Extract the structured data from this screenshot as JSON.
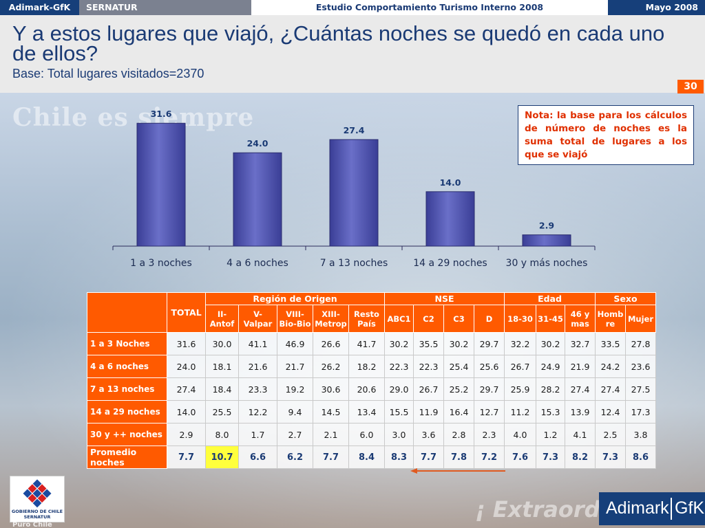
{
  "header": {
    "brand": "Adimark-GfK",
    "client": "SERNATUR",
    "study": "Estudio Comportamiento Turismo Interno 2008",
    "date": "Mayo 2008"
  },
  "title": "Y a estos lugares que viajó, ¿Cuántas noches se quedó en cada uno de ellos?",
  "subtitle": "Base: Total lugares visitados=2370",
  "page_number": "30",
  "note": "Nota: la base para los cálculos de número de noches es la suma total de lugares a los que se viajó",
  "background_text": {
    "wm1": "Chile es siempre",
    "wm2": "¡ Extraord"
  },
  "colors": {
    "accent": "#ff5a00",
    "navy": "#1a3a74",
    "bar": "#4b4fa8",
    "highlight": "#ffff3c"
  },
  "chart_data": {
    "type": "bar",
    "categories": [
      "1 a 3 noches",
      "4 a 6 noches",
      "7 a 13 noches",
      "14 a 29 noches",
      "30 y más noches"
    ],
    "values": [
      31.6,
      24.0,
      27.4,
      14.0,
      2.9
    ],
    "labels": [
      "31.6",
      "24.0",
      "27.4",
      "14.0",
      "2.9"
    ],
    "title": "",
    "xlabel": "",
    "ylabel": "",
    "ylim": [
      0,
      35
    ],
    "grid": false
  },
  "table": {
    "total_header": "TOTAL",
    "groups": [
      "Región de Origen",
      "NSE",
      "Edad",
      "Sexo"
    ],
    "columns": [
      "II-\nAntof",
      "V-\nValpar",
      "VIII-\nBio-Bio",
      "XIII-\nMetrop",
      "Resto\nPaís",
      "ABC1",
      "C2",
      "C3",
      "D",
      "18-30",
      "31-45",
      "46 y\nmas",
      "Homb\nre",
      "Mujer"
    ],
    "rows": [
      {
        "label": "1 a 3 Noches",
        "values": [
          "31.6",
          "30.0",
          "41.1",
          "46.9",
          "26.6",
          "41.7",
          "30.2",
          "35.5",
          "30.2",
          "29.7",
          "32.2",
          "30.2",
          "32.7",
          "33.5",
          "27.8"
        ]
      },
      {
        "label": "4 a 6 noches",
        "values": [
          "24.0",
          "18.1",
          "21.6",
          "21.7",
          "26.2",
          "18.2",
          "22.3",
          "22.3",
          "25.4",
          "25.6",
          "26.7",
          "24.9",
          "21.9",
          "24.2",
          "23.6"
        ]
      },
      {
        "label": "7 a 13 noches",
        "values": [
          "27.4",
          "18.4",
          "23.3",
          "19.2",
          "30.6",
          "20.6",
          "29.0",
          "26.7",
          "25.2",
          "29.7",
          "25.9",
          "28.2",
          "27.4",
          "27.4",
          "27.5"
        ]
      },
      {
        "label": "14 a 29 noches",
        "values": [
          "14.0",
          "25.5",
          "12.2",
          "9.4",
          "14.5",
          "13.4",
          "15.5",
          "11.9",
          "16.4",
          "12.7",
          "11.2",
          "15.3",
          "13.9",
          "12.4",
          "17.3"
        ]
      },
      {
        "label": "30 y ++ noches",
        "values": [
          "2.9",
          "8.0",
          "1.7",
          "2.7",
          "2.1",
          "6.0",
          "3.0",
          "3.6",
          "2.8",
          "2.3",
          "4.0",
          "1.2",
          "4.1",
          "2.5",
          "3.8"
        ]
      }
    ],
    "average": {
      "label": "Promedio noches",
      "values": [
        "7.7",
        "10.7",
        "6.6",
        "6.2",
        "7.7",
        "8.4",
        "8.3",
        "7.7",
        "7.8",
        "7.2",
        "7.6",
        "7.3",
        "8.2",
        "7.3",
        "8.6"
      ]
    }
  },
  "logos": {
    "gov_line1": "GOBIERNO DE CHILE",
    "gov_line2": "SERNATUR",
    "puro": "Puro Chile",
    "adimark": "Adimark",
    "gfk": "GfK"
  }
}
